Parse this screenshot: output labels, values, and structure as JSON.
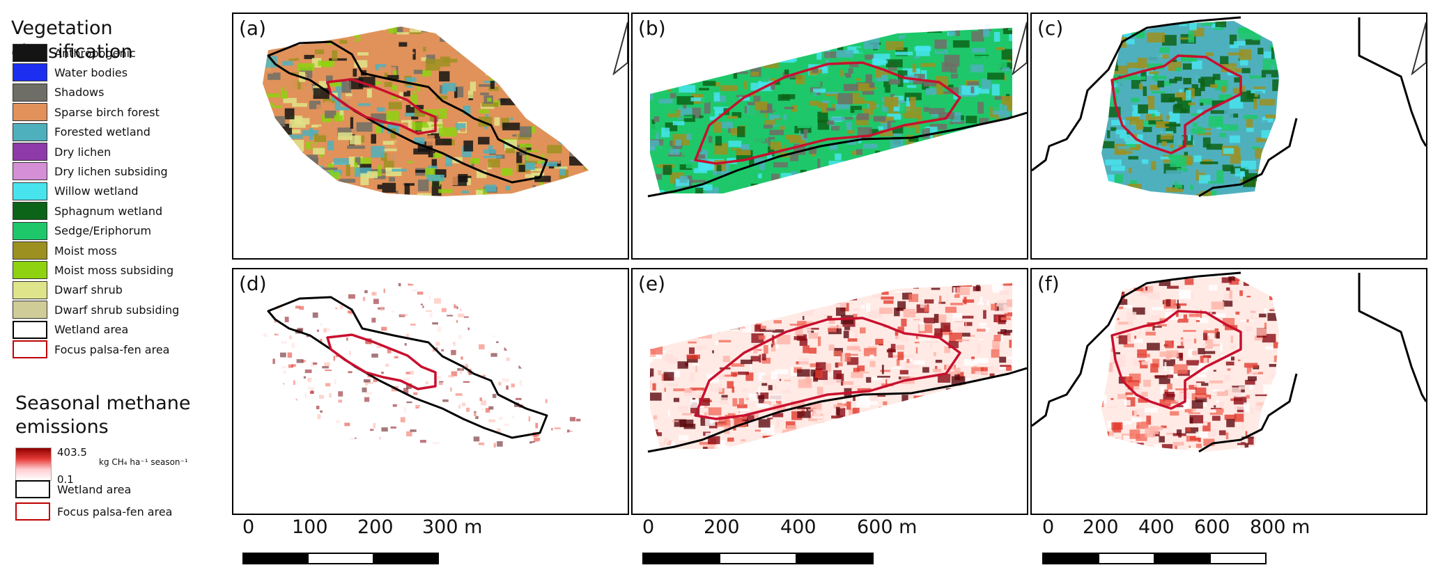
{
  "legend": {
    "vegetation_title": "Vegetation classification",
    "classes": [
      {
        "label": "Anthropogenic",
        "color": "#141414",
        "style": "fill"
      },
      {
        "label": "Water bodies",
        "color": "#1c2ff0",
        "style": "fill"
      },
      {
        "label": "Shadows",
        "color": "#6e6e66",
        "style": "fill"
      },
      {
        "label": "Sparse birch forest",
        "color": "#e0925a",
        "style": "fill"
      },
      {
        "label": "Forested wetland",
        "color": "#4fb0bd",
        "style": "fill"
      },
      {
        "label": "Dry lichen",
        "color": "#8e3aa8",
        "style": "fill"
      },
      {
        "label": "Dry lichen subsiding",
        "color": "#d48fd6",
        "style": "fill"
      },
      {
        "label": "Willow wetland",
        "color": "#48e4ee",
        "style": "fill"
      },
      {
        "label": "Sphagnum wetland",
        "color": "#0c6418",
        "style": "fill"
      },
      {
        "label": "Sedge/Eriphorum",
        "color": "#1ec86a",
        "style": "fill"
      },
      {
        "label": "Moist moss",
        "color": "#9c9020",
        "style": "fill"
      },
      {
        "label": "Moist moss subsiding",
        "color": "#8ed210",
        "style": "fill"
      },
      {
        "label": "Dwarf shrub",
        "color": "#dfe48a",
        "style": "fill"
      },
      {
        "label": "Dwarf shrub subsiding",
        "color": "#d0cc98",
        "style": "fill"
      },
      {
        "label": "Wetland area",
        "color": "#000000",
        "style": "outline"
      },
      {
        "label": "Focus palsa-fen area",
        "color": "#c00000",
        "style": "outline"
      }
    ],
    "methane_title_line1": "Seasonal methane",
    "methane_title_line2": "emissions",
    "ramp_max": "403.5",
    "ramp_min": "0.1",
    "ramp_unit": "kg CH₄ ha⁻¹ season⁻¹",
    "methane_outline_items": [
      {
        "label": "Wetland area",
        "color": "#000000"
      },
      {
        "label": "Focus palsa-fen area",
        "color": "#c00000"
      }
    ]
  },
  "panels": [
    {
      "label": "(a)",
      "kind": "veg",
      "site": 1,
      "north_arrow": true
    },
    {
      "label": "(b)",
      "kind": "veg",
      "site": 2,
      "north_arrow": true
    },
    {
      "label": "(c)",
      "kind": "veg",
      "site": 3,
      "north_arrow": true
    },
    {
      "label": "(d)",
      "kind": "ch4",
      "site": 1,
      "north_arrow": false
    },
    {
      "label": "(e)",
      "kind": "ch4",
      "site": 2,
      "north_arrow": false
    },
    {
      "label": "(f)",
      "kind": "ch4",
      "site": 3,
      "north_arrow": false
    }
  ],
  "scalebars": [
    {
      "ticks": [
        "0",
        "100",
        "200",
        "300 m"
      ]
    },
    {
      "ticks": [
        "0",
        "200",
        "400",
        "600 m"
      ]
    },
    {
      "ticks": [
        "0",
        "200",
        "400",
        "600",
        "800 m"
      ]
    }
  ]
}
